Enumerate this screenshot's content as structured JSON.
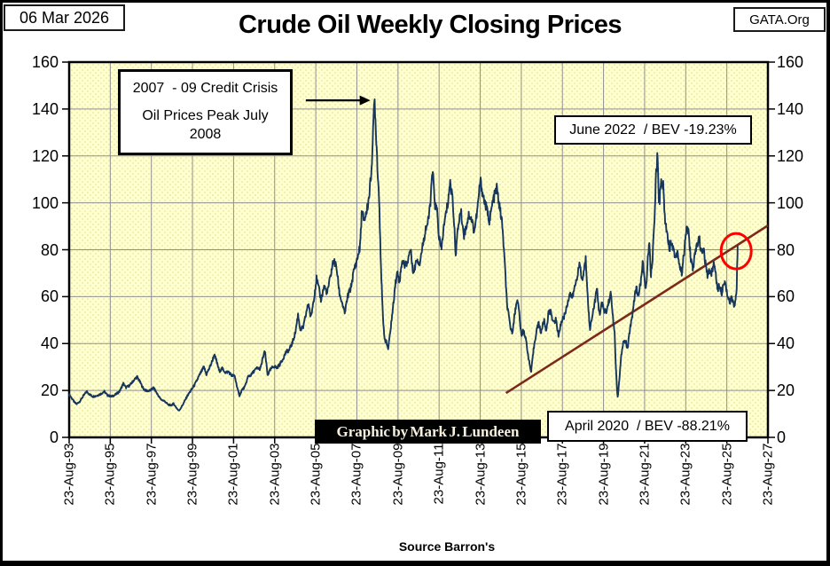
{
  "window": {
    "date_label": "06 Mar 2026",
    "org_label": "GATA.Org"
  },
  "chart_data": {
    "type": "line",
    "title": "Crude Oil Weekly Closing Prices",
    "source": "Source Barron's",
    "credit": "Graphic by Mark J. Lundeen",
    "xlabel": "",
    "ylabel": "",
    "ylim": [
      0,
      160
    ],
    "y_ticks": [
      0,
      20,
      40,
      60,
      80,
      100,
      120,
      140,
      160
    ],
    "x_ticks": [
      "23-Aug-93",
      "23-Aug-95",
      "23-Aug-97",
      "23-Aug-99",
      "23-Aug-01",
      "23-Aug-03",
      "23-Aug-05",
      "23-Aug-07",
      "23-Aug-09",
      "23-Aug-11",
      "23-Aug-13",
      "23-Aug-15",
      "23-Aug-17",
      "23-Aug-19",
      "23-Aug-21",
      "23-Aug-23",
      "23-Aug-25",
      "23-Aug-27"
    ],
    "xlim_years": [
      1993.645,
      2027.645
    ],
    "grid": true,
    "plot_bg": "#FFFFD0",
    "grid_color": "#8F8F8F",
    "series": [
      {
        "name": "WTI Crude Oil Weekly Close",
        "color": "#17365D",
        "points": [
          [
            1993.65,
            18.3
          ],
          [
            1993.75,
            17.0
          ],
          [
            1993.9,
            15.0
          ],
          [
            1994.0,
            14.2
          ],
          [
            1994.15,
            15.2
          ],
          [
            1994.3,
            17.2
          ],
          [
            1994.5,
            19.6
          ],
          [
            1994.65,
            18.2
          ],
          [
            1994.8,
            17.4
          ],
          [
            1995.0,
            17.8
          ],
          [
            1995.2,
            18.6
          ],
          [
            1995.35,
            19.6
          ],
          [
            1995.5,
            18.0
          ],
          [
            1995.7,
            17.4
          ],
          [
            1995.9,
            18.2
          ],
          [
            1996.1,
            19.6
          ],
          [
            1996.28,
            23.0
          ],
          [
            1996.4,
            21.2
          ],
          [
            1996.6,
            22.2
          ],
          [
            1996.8,
            24.5
          ],
          [
            1996.95,
            25.8
          ],
          [
            1997.1,
            23.5
          ],
          [
            1997.25,
            20.8
          ],
          [
            1997.4,
            19.8
          ],
          [
            1997.6,
            20.0
          ],
          [
            1997.75,
            21.2
          ],
          [
            1997.9,
            19.0
          ],
          [
            1998.1,
            16.2
          ],
          [
            1998.3,
            15.4
          ],
          [
            1998.45,
            14.0
          ],
          [
            1998.6,
            13.6
          ],
          [
            1998.72,
            14.4
          ],
          [
            1998.85,
            12.8
          ],
          [
            1998.98,
            11.3
          ],
          [
            1999.1,
            12.8
          ],
          [
            1999.25,
            15.2
          ],
          [
            1999.4,
            17.8
          ],
          [
            1999.6,
            20.4
          ],
          [
            1999.75,
            22.4
          ],
          [
            1999.9,
            25.0
          ],
          [
            2000.05,
            27.6
          ],
          [
            2000.2,
            30.0
          ],
          [
            2000.32,
            26.8
          ],
          [
            2000.45,
            29.2
          ],
          [
            2000.6,
            32.4
          ],
          [
            2000.7,
            35.2
          ],
          [
            2000.8,
            33.0
          ],
          [
            2000.95,
            28.2
          ],
          [
            2001.1,
            29.4
          ],
          [
            2001.25,
            27.6
          ],
          [
            2001.4,
            28.0
          ],
          [
            2001.55,
            26.4
          ],
          [
            2001.7,
            26.2
          ],
          [
            2001.8,
            22.2
          ],
          [
            2001.92,
            17.6
          ],
          [
            2002.05,
            20.2
          ],
          [
            2002.2,
            21.6
          ],
          [
            2002.35,
            26.0
          ],
          [
            2002.5,
            26.6
          ],
          [
            2002.65,
            28.4
          ],
          [
            2002.8,
            29.6
          ],
          [
            2002.95,
            29.2
          ],
          [
            2003.1,
            35.0
          ],
          [
            2003.17,
            36.6
          ],
          [
            2003.3,
            26.6
          ],
          [
            2003.45,
            29.0
          ],
          [
            2003.6,
            30.4
          ],
          [
            2003.75,
            29.6
          ],
          [
            2003.9,
            31.2
          ],
          [
            2004.05,
            33.6
          ],
          [
            2004.2,
            36.4
          ],
          [
            2004.35,
            37.2
          ],
          [
            2004.5,
            40.2
          ],
          [
            2004.65,
            44.6
          ],
          [
            2004.78,
            52.4
          ],
          [
            2004.9,
            45.6
          ],
          [
            2005.05,
            47.2
          ],
          [
            2005.2,
            54.0
          ],
          [
            2005.3,
            57.2
          ],
          [
            2005.4,
            50.6
          ],
          [
            2005.55,
            59.2
          ],
          [
            2005.68,
            67.8
          ],
          [
            2005.8,
            63.0
          ],
          [
            2005.9,
            58.6
          ],
          [
            2006.05,
            64.4
          ],
          [
            2006.2,
            61.6
          ],
          [
            2006.35,
            68.2
          ],
          [
            2006.5,
            75.4
          ],
          [
            2006.65,
            72.8
          ],
          [
            2006.8,
            61.2
          ],
          [
            2006.95,
            56.6
          ],
          [
            2007.05,
            52.6
          ],
          [
            2007.2,
            60.2
          ],
          [
            2007.35,
            63.8
          ],
          [
            2007.5,
            71.2
          ],
          [
            2007.65,
            75.6
          ],
          [
            2007.8,
            81.4
          ],
          [
            2007.88,
            96.0
          ],
          [
            2008.0,
            92.6
          ],
          [
            2008.1,
            95.4
          ],
          [
            2008.22,
            101.5
          ],
          [
            2008.32,
            110.0
          ],
          [
            2008.42,
            126.0
          ],
          [
            2008.5,
            145.5
          ],
          [
            2008.56,
            133.0
          ],
          [
            2008.65,
            115.0
          ],
          [
            2008.73,
            101.0
          ],
          [
            2008.82,
            72.0
          ],
          [
            2008.92,
            49.0
          ],
          [
            2009.0,
            42.0
          ],
          [
            2009.1,
            40.0
          ],
          [
            2009.17,
            37.6
          ],
          [
            2009.28,
            46.0
          ],
          [
            2009.4,
            55.0
          ],
          [
            2009.5,
            64.8
          ],
          [
            2009.62,
            70.4
          ],
          [
            2009.72,
            66.4
          ],
          [
            2009.85,
            76.0
          ],
          [
            2009.95,
            73.4
          ],
          [
            2010.1,
            74.6
          ],
          [
            2010.25,
            80.4
          ],
          [
            2010.4,
            69.6
          ],
          [
            2010.55,
            76.4
          ],
          [
            2010.7,
            74.2
          ],
          [
            2010.85,
            82.0
          ],
          [
            2011.0,
            89.4
          ],
          [
            2011.12,
            92.0
          ],
          [
            2011.22,
            100.5
          ],
          [
            2011.33,
            113.5
          ],
          [
            2011.45,
            99.0
          ],
          [
            2011.55,
            96.4
          ],
          [
            2011.63,
            86.2
          ],
          [
            2011.75,
            79.6
          ],
          [
            2011.85,
            88.0
          ],
          [
            2011.95,
            94.0
          ],
          [
            2012.08,
            100.4
          ],
          [
            2012.17,
            108.5
          ],
          [
            2012.3,
            103.0
          ],
          [
            2012.45,
            78.4
          ],
          [
            2012.6,
            92.0
          ],
          [
            2012.7,
            96.8
          ],
          [
            2012.85,
            86.2
          ],
          [
            2012.95,
            89.4
          ],
          [
            2013.1,
            95.4
          ],
          [
            2013.25,
            92.2
          ],
          [
            2013.35,
            87.6
          ],
          [
            2013.5,
            96.4
          ],
          [
            2013.65,
            109.5
          ],
          [
            2013.8,
            102.4
          ],
          [
            2013.95,
            97.6
          ],
          [
            2014.1,
            92.2
          ],
          [
            2014.25,
            100.2
          ],
          [
            2014.45,
            106.4
          ],
          [
            2014.6,
            97.4
          ],
          [
            2014.7,
            92.2
          ],
          [
            2014.8,
            80.0
          ],
          [
            2014.95,
            56.6
          ],
          [
            2015.1,
            47.6
          ],
          [
            2015.2,
            44.6
          ],
          [
            2015.35,
            54.0
          ],
          [
            2015.45,
            59.6
          ],
          [
            2015.55,
            52.4
          ],
          [
            2015.65,
            42.6
          ],
          [
            2015.75,
            46.4
          ],
          [
            2015.9,
            40.0
          ],
          [
            2016.0,
            33.6
          ],
          [
            2016.12,
            27.6
          ],
          [
            2016.25,
            38.0
          ],
          [
            2016.4,
            46.4
          ],
          [
            2016.5,
            48.6
          ],
          [
            2016.6,
            44.6
          ],
          [
            2016.75,
            50.0
          ],
          [
            2016.85,
            45.2
          ],
          [
            2016.97,
            53.0
          ],
          [
            2017.1,
            53.6
          ],
          [
            2017.2,
            48.6
          ],
          [
            2017.33,
            50.4
          ],
          [
            2017.45,
            43.6
          ],
          [
            2017.6,
            49.4
          ],
          [
            2017.75,
            52.0
          ],
          [
            2017.9,
            57.4
          ],
          [
            2018.0,
            61.6
          ],
          [
            2018.12,
            59.4
          ],
          [
            2018.25,
            64.2
          ],
          [
            2018.4,
            70.4
          ],
          [
            2018.5,
            74.0
          ],
          [
            2018.6,
            66.2
          ],
          [
            2018.7,
            71.4
          ],
          [
            2018.78,
            76.0
          ],
          [
            2018.9,
            57.0
          ],
          [
            2018.98,
            45.6
          ],
          [
            2019.1,
            52.4
          ],
          [
            2019.2,
            56.6
          ],
          [
            2019.32,
            63.4
          ],
          [
            2019.45,
            52.2
          ],
          [
            2019.55,
            57.4
          ],
          [
            2019.65,
            54.6
          ],
          [
            2019.78,
            53.2
          ],
          [
            2019.9,
            58.0
          ],
          [
            2020.0,
            61.4
          ],
          [
            2020.1,
            51.6
          ],
          [
            2020.18,
            45.0
          ],
          [
            2020.25,
            28.5
          ],
          [
            2020.33,
            16.5
          ],
          [
            2020.42,
            25.0
          ],
          [
            2020.5,
            34.0
          ],
          [
            2020.6,
            40.4
          ],
          [
            2020.72,
            41.0
          ],
          [
            2020.82,
            37.6
          ],
          [
            2020.92,
            45.6
          ],
          [
            2021.05,
            52.4
          ],
          [
            2021.15,
            59.6
          ],
          [
            2021.25,
            64.4
          ],
          [
            2021.33,
            59.6
          ],
          [
            2021.45,
            66.0
          ],
          [
            2021.55,
            74.0
          ],
          [
            2021.63,
            68.2
          ],
          [
            2021.7,
            62.4
          ],
          [
            2021.8,
            75.6
          ],
          [
            2021.87,
            83.4
          ],
          [
            2021.95,
            68.2
          ],
          [
            2022.05,
            79.0
          ],
          [
            2022.12,
            92.0
          ],
          [
            2022.2,
            113.0
          ],
          [
            2022.27,
            120.5
          ],
          [
            2022.35,
            99.0
          ],
          [
            2022.45,
            109.5
          ],
          [
            2022.55,
            107.0
          ],
          [
            2022.65,
            91.0
          ],
          [
            2022.75,
            88.0
          ],
          [
            2022.85,
            80.0
          ],
          [
            2022.95,
            84.0
          ],
          [
            2023.05,
            80.0
          ],
          [
            2023.15,
            76.6
          ],
          [
            2023.25,
            79.4
          ],
          [
            2023.35,
            73.0
          ],
          [
            2023.45,
            70.2
          ],
          [
            2023.55,
            77.4
          ],
          [
            2023.7,
            90.4
          ],
          [
            2023.78,
            87.0
          ],
          [
            2023.9,
            75.6
          ],
          [
            2024.0,
            72.0
          ],
          [
            2024.1,
            78.0
          ],
          [
            2024.2,
            82.4
          ],
          [
            2024.3,
            85.4
          ],
          [
            2024.4,
            78.6
          ],
          [
            2024.5,
            81.0
          ],
          [
            2024.6,
            74.4
          ],
          [
            2024.7,
            68.6
          ],
          [
            2024.8,
            71.4
          ],
          [
            2024.9,
            70.0
          ],
          [
            2025.0,
            74.4
          ],
          [
            2025.1,
            70.4
          ],
          [
            2025.2,
            62.6
          ],
          [
            2025.3,
            65.0
          ],
          [
            2025.4,
            61.6
          ],
          [
            2025.5,
            67.0
          ],
          [
            2025.6,
            64.4
          ],
          [
            2025.7,
            60.0
          ],
          [
            2025.8,
            57.0
          ],
          [
            2025.88,
            60.0
          ],
          [
            2025.96,
            56.6
          ],
          [
            2026.06,
            57.5
          ],
          [
            2026.12,
            62.0
          ],
          [
            2026.17,
            81.5
          ]
        ]
      },
      {
        "name": "Rising Support Trendline",
        "color": "#7B291B",
        "points": [
          [
            2014.9,
            18.9
          ],
          [
            2027.64,
            90.3
          ]
        ]
      }
    ],
    "annotations": {
      "credit_crisis": {
        "line1": "2007  - 09 Credit Crisis",
        "line2": "Oil Prices Peak July",
        "line3": "2008"
      },
      "june_2022": "June 2022  / BEV -19.23%",
      "april_2020": "April 2020  / BEV -88.21%",
      "highlight_circle": {
        "year": 2026.1,
        "value": 79.4,
        "color": "#FF0000"
      },
      "peak_arrow": {
        "from_year": 2005.16,
        "to_year": 2008.3,
        "value": 143.7
      }
    }
  }
}
